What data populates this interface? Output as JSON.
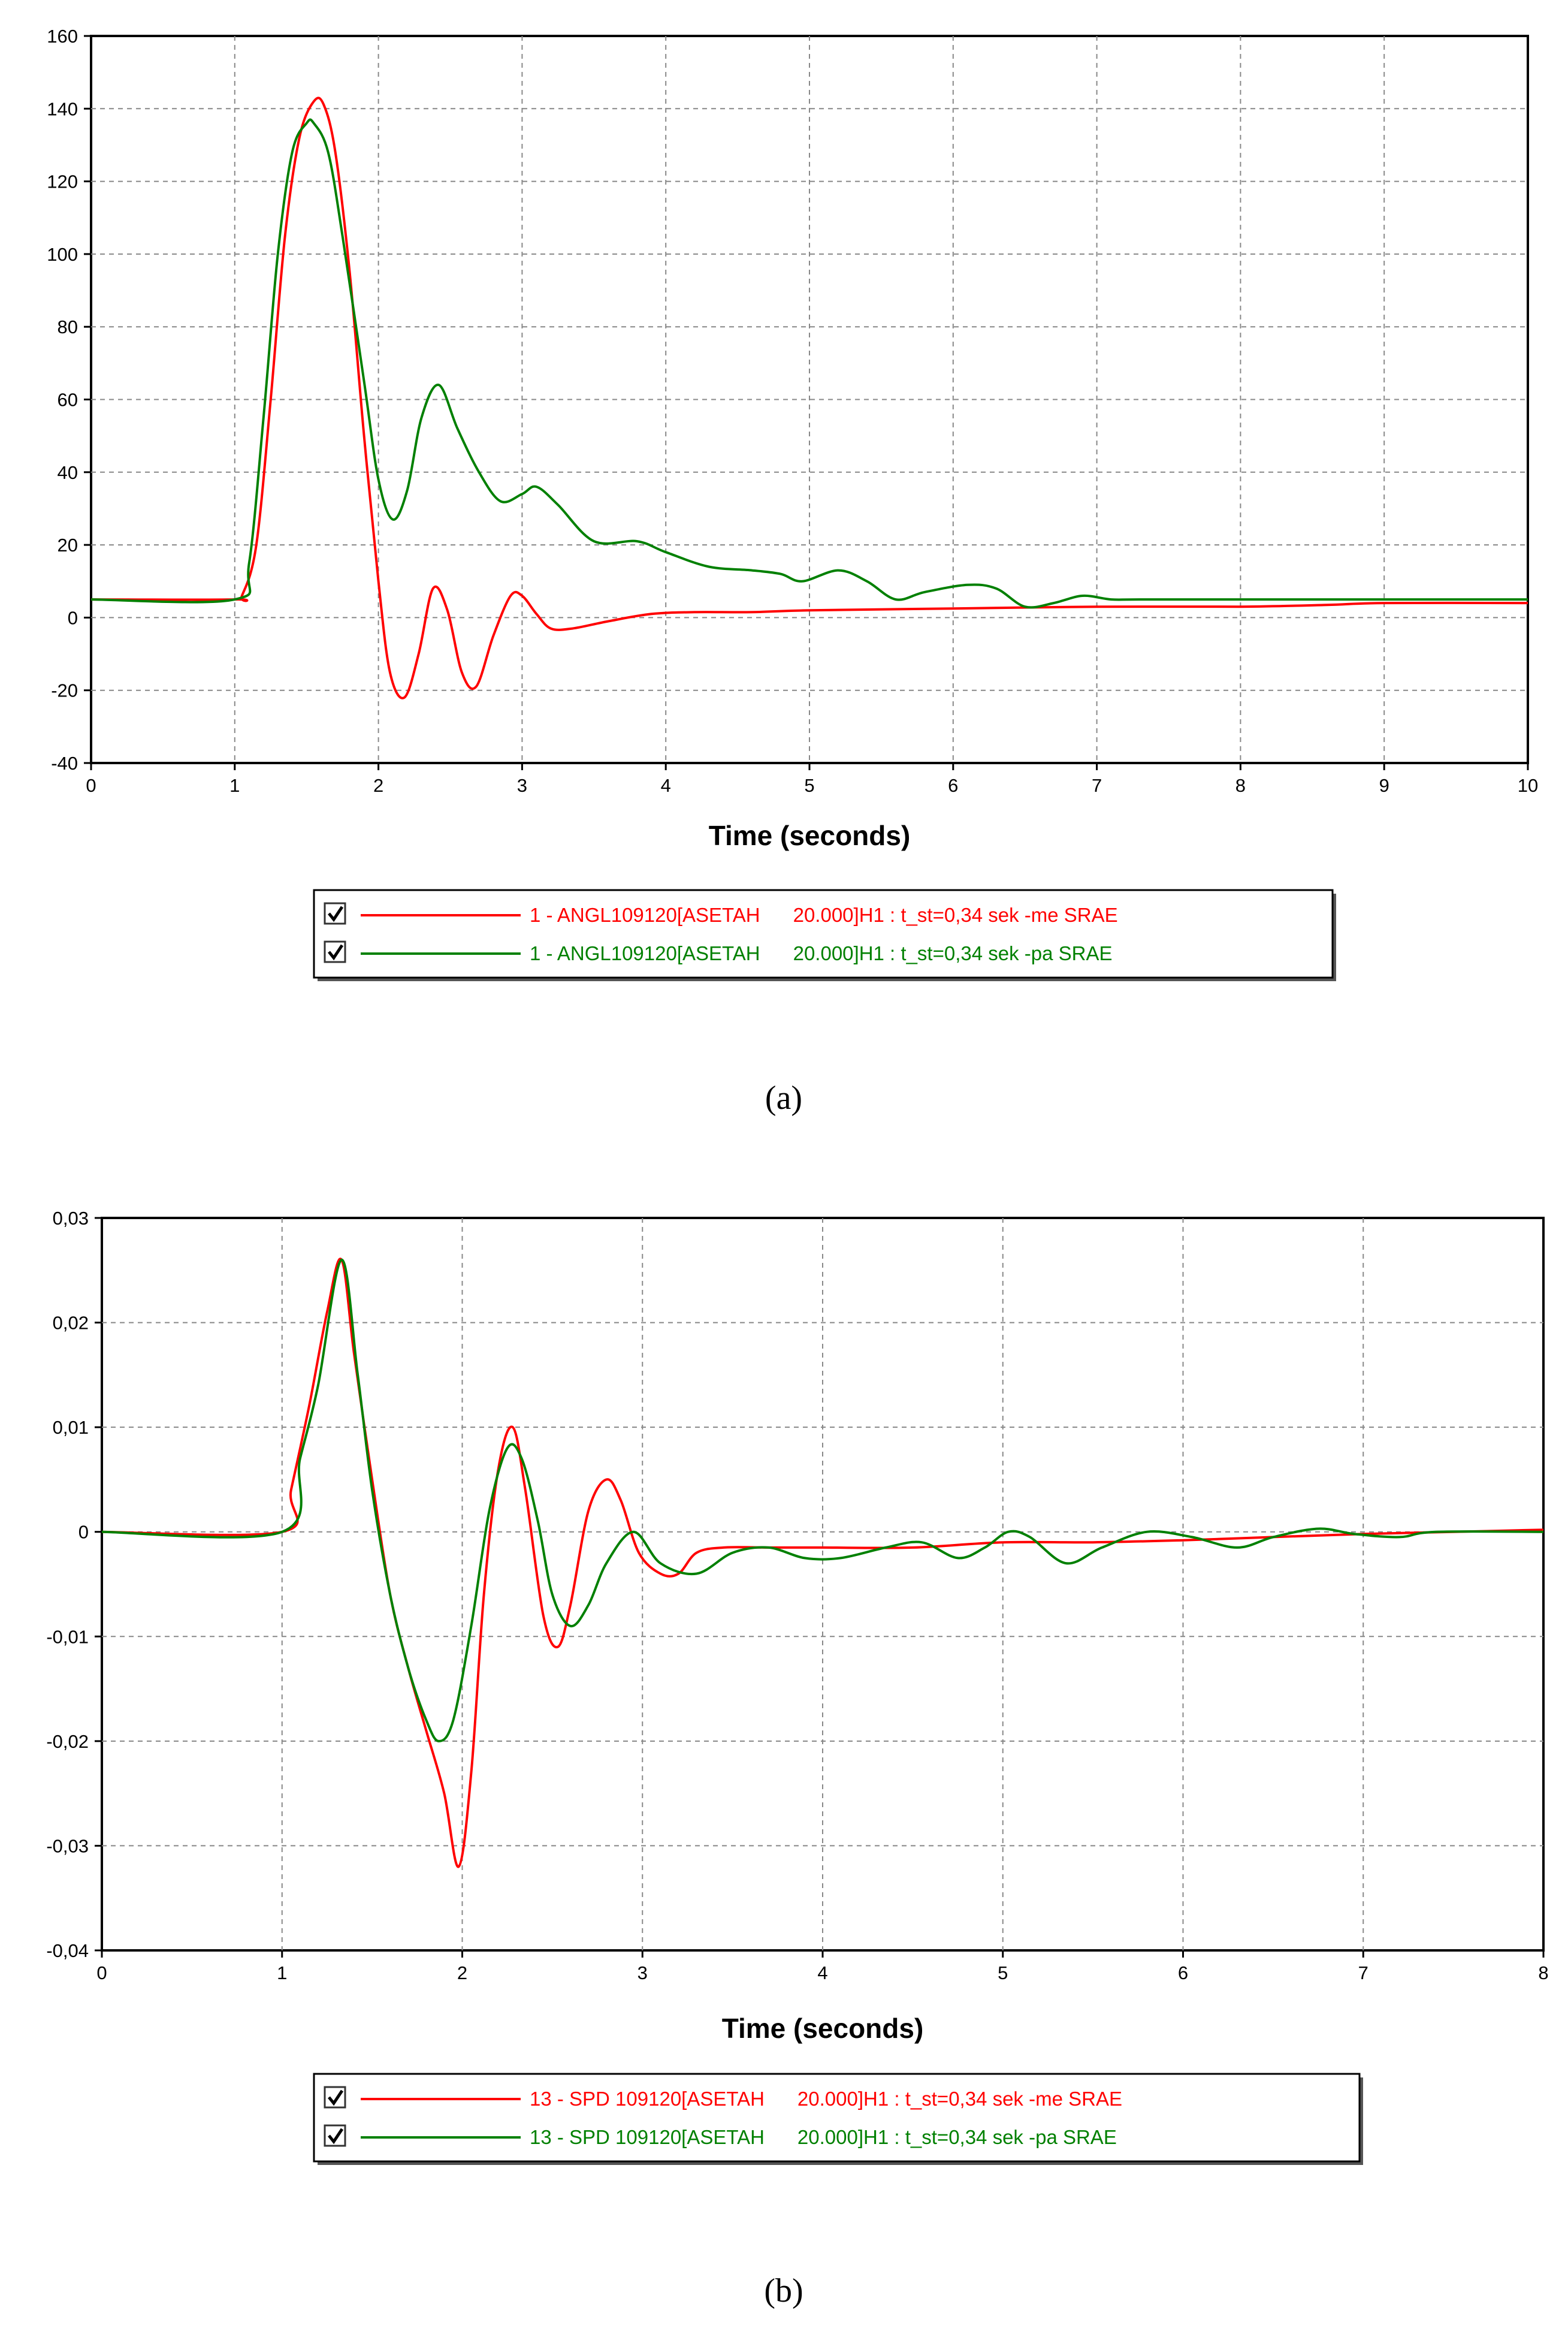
{
  "chart_data": [
    {
      "type": "line",
      "xlabel": "Time (seconds)",
      "ylabel": "",
      "xlim": [
        0,
        10
      ],
      "ylim": [
        -40,
        160
      ],
      "xticks": [
        "0",
        "1",
        "2",
        "3",
        "4",
        "5",
        "6",
        "7",
        "8",
        "9",
        "10"
      ],
      "yticks": [
        "-40",
        "-20",
        "0",
        "20",
        "40",
        "60",
        "80",
        "100",
        "120",
        "140",
        "160"
      ],
      "grid": true,
      "legend_position": "below",
      "caption": "(a)",
      "series": [
        {
          "name": "1 - ANGL109120[ASETAH      20.000]H1 : t_st=0,34 sek -me SRAE",
          "color": "#ff0000",
          "x": [
            0,
            1.0,
            1.05,
            1.15,
            1.25,
            1.35,
            1.45,
            1.55,
            1.62,
            1.7,
            1.8,
            1.9,
            2.0,
            2.08,
            2.18,
            2.28,
            2.38,
            2.48,
            2.58,
            2.68,
            2.8,
            2.92,
            3.0,
            3.1,
            3.2,
            3.35,
            3.6,
            3.9,
            4.2,
            4.6,
            5.0,
            6.0,
            7.0,
            8.0,
            8.6,
            9.0,
            10.0
          ],
          "y": [
            5,
            5,
            6,
            20,
            60,
            105,
            132,
            142,
            141,
            128,
            95,
            50,
            10,
            -15,
            -22,
            -10,
            8,
            2,
            -15,
            -19,
            -5,
            6,
            6,
            1,
            -3,
            -3,
            -1,
            1,
            1.5,
            1.5,
            2,
            2.5,
            3,
            3,
            3.5,
            4,
            4
          ]
        },
        {
          "name": "1 - ANGL109120[ASETAH      20.000]H1 : t_st=0,34 sek -pa SRAE",
          "color": "#008000",
          "x": [
            0,
            1.0,
            1.1,
            1.2,
            1.3,
            1.4,
            1.5,
            1.55,
            1.65,
            1.75,
            1.9,
            2.0,
            2.1,
            2.2,
            2.3,
            2.42,
            2.55,
            2.7,
            2.85,
            3.0,
            3.1,
            3.25,
            3.5,
            3.8,
            4.0,
            4.3,
            4.6,
            4.8,
            4.95,
            5.2,
            5.4,
            5.6,
            5.8,
            6.1,
            6.3,
            6.5,
            6.7,
            6.9,
            7.1,
            7.3,
            8.0,
            9.0,
            10.0
          ],
          "y": [
            5,
            5,
            15,
            55,
            100,
            128,
            136,
            136,
            128,
            105,
            65,
            38,
            27,
            35,
            55,
            64,
            52,
            40,
            32,
            34,
            36,
            31,
            21,
            21,
            18,
            14,
            13,
            12,
            10,
            13,
            10,
            5,
            7,
            9,
            8,
            3,
            4,
            6,
            5,
            5,
            5,
            5,
            5
          ]
        }
      ]
    },
    {
      "type": "line",
      "xlabel": "Time (seconds)",
      "ylabel": "",
      "xlim": [
        0,
        8
      ],
      "ylim": [
        -0.04,
        0.03
      ],
      "xticks": [
        "0",
        "1",
        "2",
        "3",
        "4",
        "5",
        "6",
        "7",
        "8"
      ],
      "yticks": [
        "-0,04",
        "-0,03",
        "-0,02",
        "-0,01",
        "0",
        "0,01",
        "0,02",
        "0,03"
      ],
      "grid": true,
      "legend_position": "below",
      "caption": "(b)",
      "series": [
        {
          "name": "13 - SPD 109120[ASETAH      20.000]H1 : t_st=0,34 sek -me SRAE",
          "color": "#ff0000",
          "x": [
            0,
            1.0,
            1.05,
            1.15,
            1.25,
            1.33,
            1.4,
            1.5,
            1.6,
            1.7,
            1.8,
            1.9,
            1.98,
            2.05,
            2.12,
            2.2,
            2.28,
            2.35,
            2.45,
            2.53,
            2.6,
            2.7,
            2.8,
            2.88,
            2.98,
            3.1,
            3.2,
            3.3,
            3.45,
            3.7,
            4.0,
            4.5,
            5.0,
            5.5,
            6.0,
            6.5,
            7.0,
            7.5,
            8.0
          ],
          "y": [
            0,
            0,
            0.004,
            0.012,
            0.021,
            0.026,
            0.017,
            0.005,
            -0.006,
            -0.013,
            -0.019,
            -0.025,
            -0.032,
            -0.023,
            -0.006,
            0.006,
            0.01,
            0.004,
            -0.008,
            -0.011,
            -0.007,
            0.002,
            0.005,
            0.003,
            -0.002,
            -0.004,
            -0.004,
            -0.002,
            -0.0015,
            -0.0015,
            -0.0015,
            -0.0015,
            -0.001,
            -0.001,
            -0.0008,
            -0.0005,
            -0.0002,
            0,
            0.0002
          ]
        },
        {
          "name": "13 - SPD 109120[ASETAH      20.000]H1 : t_st=0,34 sek -pa SRAE",
          "color": "#008000",
          "x": [
            0,
            1.0,
            1.1,
            1.2,
            1.33,
            1.42,
            1.5,
            1.6,
            1.7,
            1.8,
            1.87,
            1.95,
            2.05,
            2.15,
            2.25,
            2.33,
            2.42,
            2.5,
            2.6,
            2.7,
            2.8,
            2.95,
            3.1,
            3.3,
            3.5,
            3.7,
            3.9,
            4.1,
            4.35,
            4.55,
            4.75,
            4.9,
            5.03,
            5.15,
            5.35,
            5.55,
            5.8,
            6.05,
            6.3,
            6.5,
            6.75,
            6.95,
            7.2,
            7.4,
            8.0
          ],
          "y": [
            0,
            0,
            0.007,
            0.014,
            0.026,
            0.015,
            0.004,
            -0.006,
            -0.013,
            -0.018,
            -0.02,
            -0.018,
            -0.009,
            0.002,
            0.008,
            0.007,
            0.001,
            -0.006,
            -0.009,
            -0.007,
            -0.003,
            0,
            -0.003,
            -0.004,
            -0.002,
            -0.0015,
            -0.0025,
            -0.0025,
            -0.0015,
            -0.001,
            -0.0025,
            -0.0015,
            0,
            -0.0005,
            -0.003,
            -0.0015,
            0,
            -0.0005,
            -0.0015,
            -0.0005,
            0.0003,
            -0.0002,
            -0.0005,
            0,
            0
          ]
        }
      ]
    }
  ]
}
